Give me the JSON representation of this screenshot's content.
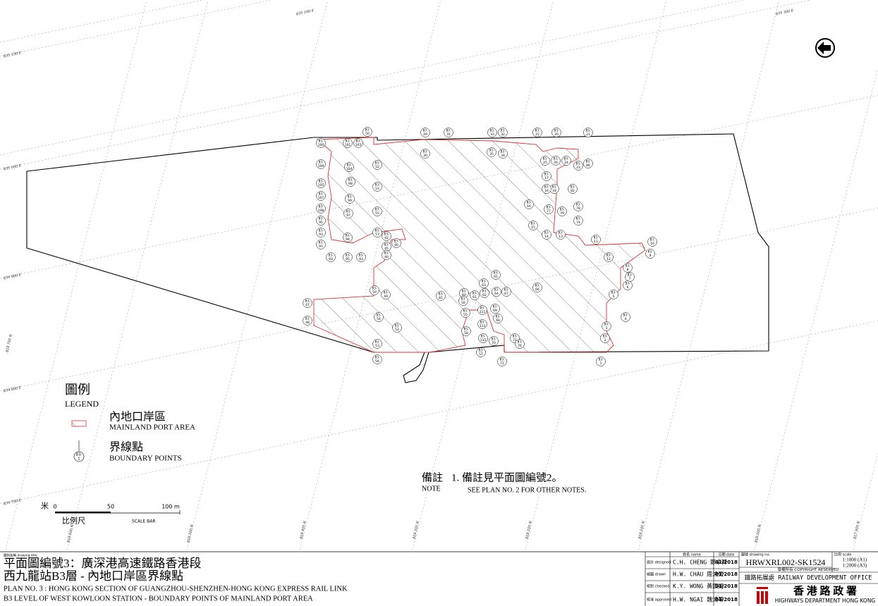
{
  "grid_labels": [
    "835 200 E",
    "835 300 E",
    "835 100 E",
    "835 000 E",
    "834 900 E",
    "834 800 E",
    "834 700 E",
    "818 700 N",
    "818 600 N",
    "818 500 N",
    "818 400 N",
    "818 300 N",
    "818 200 N",
    "818 100 N",
    "818 000 N",
    "817 900 N"
  ],
  "boundary_points": {
    "prefix": "B3-",
    "numbers": [
      "50",
      "100",
      "109",
      "105",
      "107",
      "108",
      "95",
      "93",
      "91",
      "93",
      "95",
      "43",
      "101",
      "103",
      "104",
      "98",
      "99",
      "97",
      "94",
      "52",
      "53",
      "55",
      "57",
      "42",
      "45",
      "46",
      "40",
      "29",
      "31",
      "30",
      "33",
      "32",
      "35",
      "34",
      "22",
      "20",
      "21",
      "25",
      "26",
      "24",
      "23",
      "86",
      "17",
      "18",
      "16",
      "82",
      "16",
      "77",
      "79",
      "78",
      "74",
      "15",
      "14",
      "13",
      "11",
      "12",
      "10",
      "9",
      "8",
      "7",
      "6",
      "5",
      "4",
      "3",
      "2",
      "1",
      "66",
      "65",
      "63",
      "60",
      "61",
      "62",
      "64",
      "67",
      "56",
      "69",
      "68",
      "111",
      "113",
      "115",
      "70",
      "71",
      "76",
      "72",
      "57",
      "55",
      "58",
      "52",
      "54",
      "53",
      "56",
      "47",
      "48",
      "50",
      "49",
      "81"
    ]
  },
  "legend": {
    "title_zh": "圖例",
    "title_en": "LEGEND",
    "items": [
      {
        "zh": "內地口岸區",
        "en": "MAINLAND PORT AREA"
      },
      {
        "zh": "界線點",
        "en": "BOUNDARY POINTS"
      }
    ],
    "symbol_prefix": "B3-",
    "symbol_number": "1"
  },
  "scale_bar": {
    "unit_zh": "米",
    "ticks": [
      "0",
      "50",
      "100 m"
    ],
    "label_zh": "比例尺",
    "label_en": "SCALE BAR"
  },
  "note": {
    "label_zh": "備註",
    "label_en": "NOTE",
    "text_zh": "1. 備註見平面圖編號2。",
    "text_en": "SEE PLAN NO. 2 FOR OTHER NOTES."
  },
  "title_block": {
    "caption": "圖則名稱 drawing title",
    "title_zh_1": "平面圖編號3：廣深港高速鐵路香港段",
    "title_zh_2": "西九龍站B3層 - 內地口岸區界線點",
    "title_en_1": "PLAN NO. 3 : HONG KONG SECTION OF GUANGZHOU-SHENZHEN-HONG KONG EXPRESS RAIL LINK",
    "title_en_2": "B3 LEVEL OF WEST KOWLOON STATION - BOUNDARY POINTS OF MAINLAND PORT AREA"
  },
  "table": {
    "headers": [
      "姓名 name",
      "日期 date",
      "圖號 drawing no.",
      "比例 scale"
    ],
    "rows": [
      [
        "設計 designed",
        "C.H. CHENG 鄭卓軒",
        "01/2018"
      ],
      [
        "繪圖 drawn",
        "H.W. CHAU 周鴻榮",
        "01/2018"
      ],
      [
        "核對 checked",
        "K.Y. WONG 黃國揚",
        "01/2018"
      ],
      [
        "核准 approved",
        "H.W. NGAI 魏鴻華",
        "01/2018"
      ]
    ],
    "drawing_no": "HRWXRL002-SK1524",
    "scale_1": "1:1000 (A1)",
    "scale_2": "1:2000 (A3)",
    "copyright": "版權所有 COPYRIGHT RESERVED",
    "office": "鐵路拓展處 RAILWAY DEVELOPMENT OFFICE",
    "dept_zh": "香 港 路 政 署",
    "dept_en": "HIGHWAYS DEPARTMENT HONG KONG"
  }
}
